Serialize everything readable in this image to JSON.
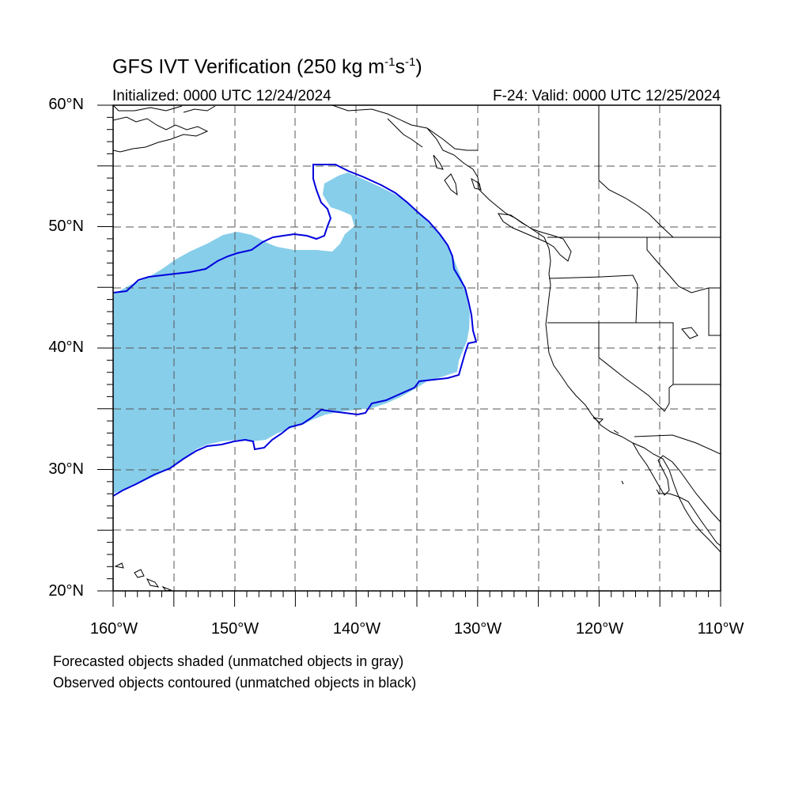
{
  "title": {
    "main": "GFS IVT Verification (250 kg m",
    "exp1": "-1",
    "s": "s",
    "exp2": "-1",
    "close": ")"
  },
  "subtitle": {
    "initialized": "Initialized: 0000 UTC 12/24/2024",
    "valid": "F-24: Valid: 0000 UTC 12/25/2024"
  },
  "axes": {
    "lat_labels": [
      "60°N",
      "50°N",
      "40°N",
      "30°N",
      "20°N"
    ],
    "lon_labels": [
      "160°W",
      "150°W",
      "140°W",
      "130°W",
      "120°W",
      "110°W"
    ],
    "lon_range": [
      -160,
      -110
    ],
    "lat_range": [
      20,
      60
    ],
    "grid": "dashed, every 5 degrees"
  },
  "legend": {
    "line1": "Forecasted objects shaded (unmatched objects in gray)",
    "line2": "Observed objects contoured (unmatched objects in black)"
  },
  "colors": {
    "forecast_fill": "#87ceeb",
    "observed_contour": "#0000dd",
    "coastline": "#000000",
    "grid": "#555555"
  }
}
